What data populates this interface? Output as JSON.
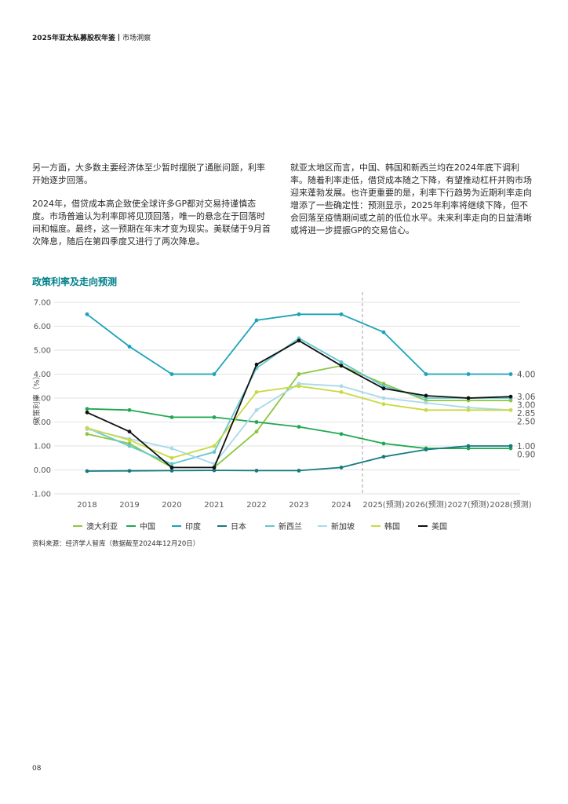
{
  "header": {
    "title": "2025年亚太私募股权年鉴",
    "section": "市场洞察"
  },
  "body_left": [
    "另一方面，大多数主要经济体至少暂时摆脱了通胀问题，利率开始逐步回落。",
    "2024年，借贷成本高企致使全球许多GP都对交易持谨慎态度。市场普遍认为利率即将见顶回落，唯一的悬念在于回落时间和幅度。最终，这一预期在年末才变为现实。美联储于9月首次降息，随后在第四季度又进行了两次降息。"
  ],
  "body_right": [
    "就亚太地区而言，中国、韩国和新西兰均在2024年底下调利率。随着利率走低，借贷成本随之下降，有望推动杠杆并购市场迎来蓬勃发展。也许更重要的是，利率下行趋势为近期利率走向增添了一些确定性：预测显示，2025年利率将继续下降，但不会回落至疫情期间或之前的低位水平。未来利率走向的日益清晰或将进一步提振GP的交易信心。"
  ],
  "chart_title": "政策利率及走向预测",
  "chart_data": {
    "type": "line",
    "title": "政策利率及走向预测",
    "ylabel": "政策利率（%）",
    "xlabel": "",
    "categories": [
      "2018",
      "2019",
      "2020",
      "2021",
      "2022",
      "2023",
      "2024",
      "2025(预测)",
      "2026(预测)",
      "2027(预测)",
      "2028(预测)"
    ],
    "ylim": [
      -1.0,
      7.0
    ],
    "yticks": [
      "-1.00",
      "0.00",
      "1.00",
      "2.00",
      "3.00",
      "4.00",
      "5.00",
      "6.00",
      "7.00"
    ],
    "grid": "horizontal",
    "forecast_divider_after": "2024",
    "legend_position": "bottom",
    "series": [
      {
        "name": "澳大利亚",
        "color": "#8cc63f",
        "values": [
          1.5,
          1.1,
          0.1,
          0.1,
          1.6,
          4.0,
          4.35,
          3.6,
          2.9,
          2.9,
          2.9
        ]
      },
      {
        "name": "中国",
        "color": "#1fa84f",
        "values": [
          2.55,
          2.5,
          2.2,
          2.2,
          2.0,
          1.8,
          1.5,
          1.1,
          0.9,
          0.9,
          0.9
        ]
      },
      {
        "name": "印度",
        "color": "#1aa3b8",
        "values": [
          6.5,
          5.15,
          4.0,
          4.0,
          6.25,
          6.5,
          6.5,
          5.75,
          4.0,
          4.0,
          4.0
        ]
      },
      {
        "name": "日本",
        "color": "#147a80",
        "values": [
          -0.05,
          -0.04,
          -0.03,
          -0.02,
          -0.03,
          -0.03,
          0.1,
          0.55,
          0.85,
          1.0,
          1.0
        ]
      },
      {
        "name": "新西兰",
        "color": "#63c7cc",
        "values": [
          1.75,
          1.0,
          0.25,
          0.75,
          4.25,
          5.5,
          4.5,
          3.5,
          3.0,
          3.0,
          3.0
        ]
      },
      {
        "name": "新加坡",
        "color": "#a9d9ea",
        "values": [
          1.7,
          1.3,
          0.9,
          0.25,
          2.5,
          3.6,
          3.5,
          3.0,
          2.8,
          2.6,
          2.5
        ]
      },
      {
        "name": "韩国",
        "color": "#c9d943",
        "values": [
          1.75,
          1.25,
          0.5,
          1.0,
          3.25,
          3.5,
          3.25,
          2.75,
          2.5,
          2.5,
          2.5
        ]
      },
      {
        "name": "美国",
        "color": "#111111",
        "values": [
          2.4,
          1.6,
          0.1,
          0.1,
          4.4,
          5.4,
          4.35,
          3.4,
          3.1,
          3.0,
          3.06
        ]
      }
    ],
    "end_labels": [
      "4.00",
      "3.06",
      "3.00",
      "2.85",
      "2.50",
      "1.00",
      "0.90"
    ]
  },
  "source": "资料来源：经济学人智库（数据截至2024年12月20日）",
  "page_number": "08"
}
